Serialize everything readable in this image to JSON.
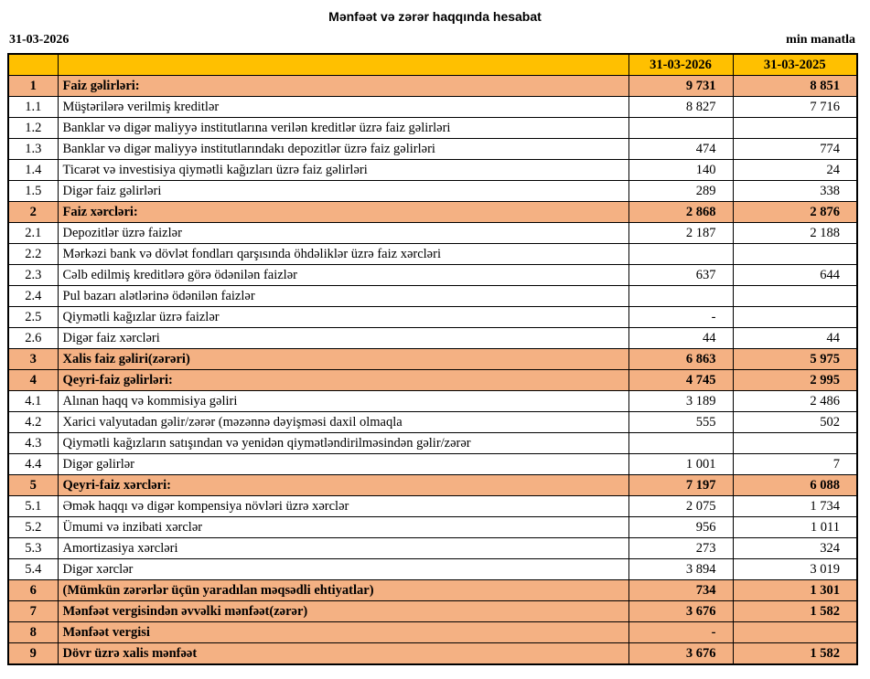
{
  "header": {
    "title": "Mənfəət və zərər haqqında hesabat",
    "date": "31-03-2026",
    "unit": "min manatla"
  },
  "table": {
    "columns": [
      "31-03-2026",
      "31-03-2025"
    ],
    "rows": [
      [
        "1",
        "Faiz gəlirləri:",
        "9 731",
        "8 851"
      ],
      [
        "1.1",
        "Müştərilərə verilmiş kreditlər",
        "8 827",
        "7 716"
      ],
      [
        "1.2",
        "Banklar və digər maliyyə institutlarına verilən kreditlər üzrə faiz gəlirləri",
        null,
        null
      ],
      [
        "1.3",
        "Banklar və digər maliyyə institutlarındakı depozitlər üzrə faiz gəlirləri",
        "474",
        "774"
      ],
      [
        "1.4",
        "Ticarət və investisiya qiymətli kağızları üzrə faiz gəlirləri",
        "140",
        "24"
      ],
      [
        "1.5",
        "Digər faiz gəlirləri",
        "289",
        "338"
      ],
      [
        "2",
        "Faiz xərcləri:",
        "2 868",
        "2 876"
      ],
      [
        "2.1",
        "Depozitlər üzrə faizlər",
        "2 187",
        "2 188"
      ],
      [
        "2.2",
        "Mərkəzi bank və dövlət fondları qarşısında öhdəliklər üzrə faiz xərcləri",
        null,
        null
      ],
      [
        "2.3",
        "Cəlb edilmiş kreditlərə görə ödənilən faizlər",
        "637",
        "644"
      ],
      [
        "2.4",
        "Pul bazarı alətlərinə ödənilən faizlər",
        null,
        null
      ],
      [
        "2.5",
        "Qiymətli kağızlar üzrə faizlər",
        "-",
        null
      ],
      [
        "2.6",
        "Digər faiz xərcləri",
        "44",
        "44"
      ],
      [
        "3",
        "Xalis faiz gəliri(zərəri)",
        "6 863",
        "5 975"
      ],
      [
        "4",
        "Qeyri-faiz gəlirləri:",
        "4 745",
        "2 995"
      ],
      [
        "4.1",
        "Alınan haqq və kommisiya gəliri",
        "3 189",
        "2 486"
      ],
      [
        "4.2",
        "Xarici valyutadan gəlir/zərər (məzənnə dəyişməsi daxil olmaqla",
        "555",
        "502"
      ],
      [
        "4.3",
        "Qiymətli kağızların satışından və yenidən qiymətləndirilməsindən gəlir/zərər",
        null,
        null
      ],
      [
        "4.4",
        "Digər gəlirlər",
        "1 001",
        "7"
      ],
      [
        "5",
        "Qeyri-faiz xərcləri:",
        "7 197",
        "6 088"
      ],
      [
        "5.1",
        "Əmək haqqı və digər kompensiya növləri üzrə xərclər",
        "2 075",
        "1 734"
      ],
      [
        "5.2",
        "Ümumi və inzibati xərclər",
        "956",
        "1 011"
      ],
      [
        "5.3",
        "Amortizasiya xərcləri",
        "273",
        "324"
      ],
      [
        "5.4",
        "Digər xərclər",
        "3 894",
        "3 019"
      ],
      [
        "6",
        "(Mümkün zərərlər üçün yaradılan məqsədli ehtiyatlar)",
        "734",
        "1 301"
      ],
      [
        "7",
        "Mənfəət vergisindən əvvəlki mənfəət(zərər)",
        "3 676",
        "1 582"
      ],
      [
        "8",
        "Mənfəət vergisi",
        "-",
        null
      ],
      [
        "9",
        "Dövr üzrə xalis mənfəət",
        "3 676",
        "1 582"
      ]
    ]
  }
}
